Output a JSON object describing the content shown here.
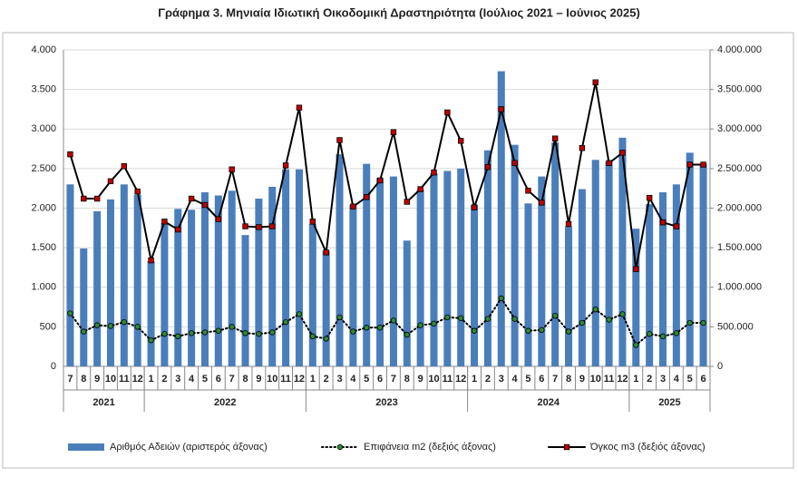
{
  "chart_data": {
    "type": "bar_line",
    "title": "Γράφημα 3. Μηνιαία Ιδιωτική Οικοδομική Δραστηριότητα (Ιούλιος 2021 – Ιούνιος 2025)",
    "categories": [
      "7",
      "8",
      "9",
      "10",
      "11",
      "12",
      "1",
      "2",
      "3",
      "4",
      "5",
      "6",
      "7",
      "8",
      "9",
      "10",
      "11",
      "12",
      "1",
      "2",
      "3",
      "4",
      "5",
      "6",
      "7",
      "8",
      "9",
      "10",
      "11",
      "12",
      "1",
      "2",
      "3",
      "4",
      "5",
      "6",
      "7",
      "8",
      "9",
      "10",
      "11",
      "12",
      "1",
      "2",
      "3",
      "4",
      "5",
      "6"
    ],
    "year_labels": [
      "2021",
      "2022",
      "2023",
      "2024",
      "2025"
    ],
    "ylim": [
      0,
      4000
    ],
    "yticks": [
      0,
      500,
      {
        "value": 1000,
        "label": "1.000"
      },
      {
        "value": 1500,
        "label": "1.500"
      },
      {
        "value": 2000,
        "label": "2.000"
      },
      {
        "value": 2500,
        "label": "2.500"
      },
      {
        "value": 3000,
        "label": "3.000"
      },
      {
        "value": 3500,
        "label": "3.500"
      },
      {
        "value": 4000,
        "label": "4.000"
      }
    ],
    "y2lim": [
      0,
      4000000
    ],
    "y2ticks": [
      0,
      {
        "value": 500000,
        "label": "500.000"
      },
      {
        "value": 1000000,
        "label": "1.000.000"
      },
      {
        "value": 1500000,
        "label": "1.500.000"
      },
      {
        "value": 2000000,
        "label": "2.000.000"
      },
      {
        "value": 2500000,
        "label": "2.500.000"
      },
      {
        "value": 3000000,
        "label": "3.000.000"
      },
      {
        "value": 3500000,
        "label": "3.500.000"
      },
      {
        "value": 4000000,
        "label": "4.000.000"
      }
    ],
    "legend": "bottom",
    "series": [
      {
        "name": "Αριθμός Αδειών (αριστερός άξονας)",
        "type": "bar",
        "axis": "y",
        "color": "#4a7ebb",
        "values": [
          2300,
          1490,
          1960,
          2110,
          2300,
          2170,
          1330,
          1810,
          1990,
          1980,
          2200,
          2160,
          2220,
          1660,
          2120,
          2270,
          2490,
          2490,
          1800,
          1460,
          2680,
          2040,
          2560,
          2380,
          2400,
          1590,
          2230,
          2440,
          2470,
          2500,
          2040,
          2730,
          3730,
          2800,
          2060,
          2400,
          2830,
          1770,
          2240,
          2610,
          2590,
          2890,
          1740,
          2050,
          2200,
          2300,
          2700,
          2560
        ]
      },
      {
        "name": "Επιφάνεια m2 (δεξιός άξονας)",
        "type": "line",
        "style": "dotted",
        "axis": "y2",
        "color": "#000000",
        "marker_color": "#2e8b3a",
        "values": [
          670000,
          440000,
          520000,
          510000,
          560000,
          500000,
          330000,
          410000,
          380000,
          420000,
          430000,
          450000,
          500000,
          420000,
          410000,
          430000,
          560000,
          660000,
          380000,
          350000,
          620000,
          440000,
          490000,
          490000,
          580000,
          400000,
          520000,
          540000,
          620000,
          610000,
          450000,
          600000,
          860000,
          600000,
          450000,
          460000,
          640000,
          440000,
          550000,
          720000,
          590000,
          660000,
          270000,
          410000,
          380000,
          420000,
          550000,
          550000
        ]
      },
      {
        "name": "Όγκος m3 (δεξιός άξονας)",
        "type": "line",
        "style": "solid",
        "axis": "y2",
        "color": "#000000",
        "marker_color": "#c00000",
        "values": [
          2680000,
          2120000,
          2120000,
          2340000,
          2530000,
          2210000,
          1340000,
          1830000,
          1730000,
          2120000,
          2040000,
          1860000,
          2490000,
          1770000,
          1760000,
          1770000,
          2540000,
          3270000,
          1830000,
          1440000,
          2860000,
          2020000,
          2140000,
          2350000,
          2960000,
          2080000,
          2240000,
          2450000,
          3210000,
          2850000,
          2010000,
          2520000,
          3250000,
          2570000,
          2220000,
          2070000,
          2880000,
          1800000,
          2760000,
          3590000,
          2570000,
          2700000,
          1230000,
          2130000,
          1820000,
          1770000,
          2550000,
          2550000
        ]
      }
    ]
  }
}
